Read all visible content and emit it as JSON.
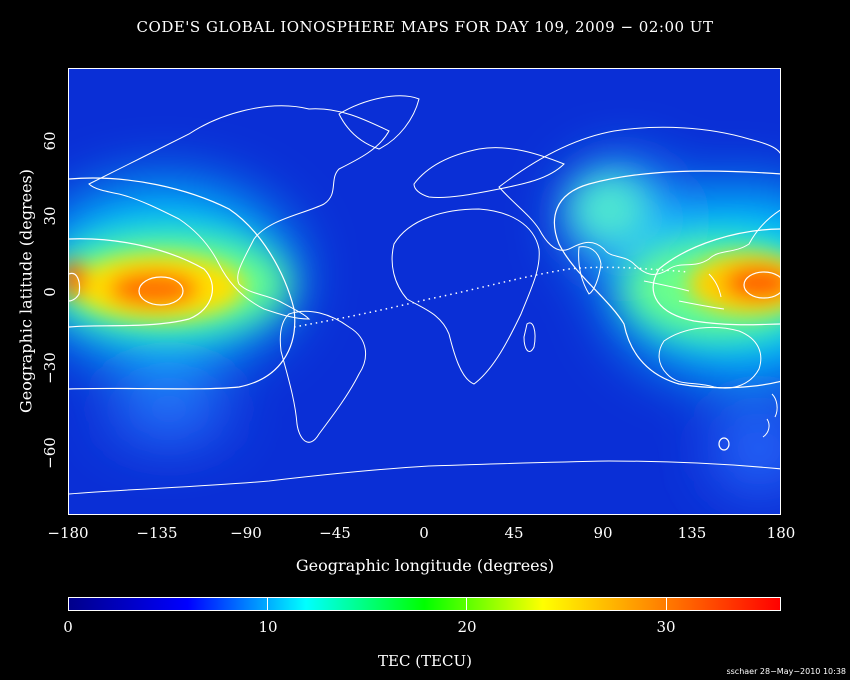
{
  "title": "CODE'S GLOBAL IONOSPHERE MAPS FOR DAY 109, 2009 − 02:00 UT",
  "map": {
    "x_axis": {
      "label": "Geographic longitude (degrees)",
      "ticks": [
        "−180",
        "−135",
        "−90",
        "−45",
        "0",
        "45",
        "90",
        "135",
        "180"
      ],
      "range": [
        -180,
        180
      ]
    },
    "y_axis": {
      "label": "Geographic latitude (degrees)",
      "ticks": [
        "−60",
        "−30",
        "0",
        "30",
        "60"
      ],
      "range": [
        -87.5,
        87.5
      ]
    },
    "field": "TEC",
    "tec_maxima": [
      {
        "lon": -135,
        "lat": 2,
        "tec": 36
      },
      {
        "lon": 165,
        "lat": 3,
        "tec": 37
      }
    ],
    "overlays": [
      "coastlines",
      "TEC contour lines",
      "magnetic equator (dotted)"
    ]
  },
  "colorbar": {
    "title": "TEC (TECU)",
    "ticks": [
      "0",
      "10",
      "20",
      "30"
    ],
    "range": [
      0,
      36
    ],
    "colors": [
      "#00008b",
      "#0000ff",
      "#00ffff",
      "#00ff00",
      "#ffff00",
      "#ff8000",
      "#ff0000"
    ]
  },
  "credit": "sschaer 28−May−2010 10:38"
}
